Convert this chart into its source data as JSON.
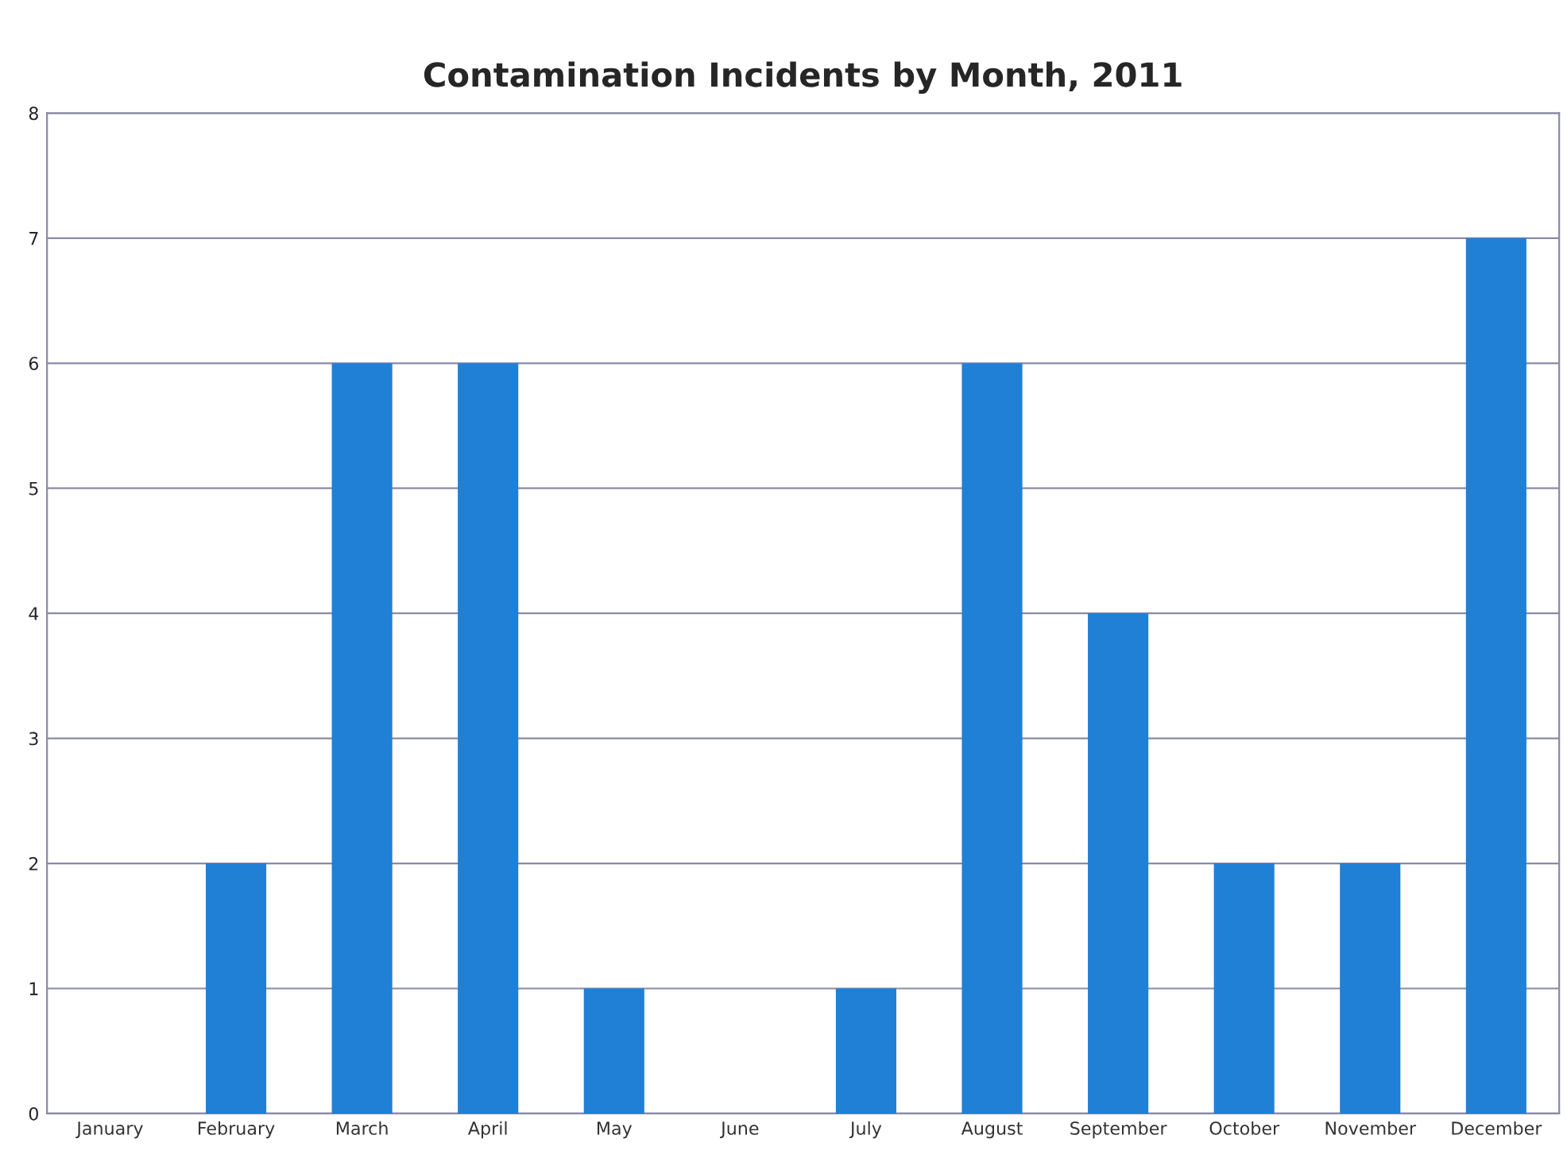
{
  "chart_data": {
    "type": "bar",
    "title": "Contamination Incidents by Month, 2011",
    "categories": [
      "January",
      "February",
      "March",
      "April",
      "May",
      "June",
      "July",
      "August",
      "September",
      "October",
      "November",
      "December"
    ],
    "values": [
      0,
      2,
      6,
      6,
      1,
      0,
      1,
      6,
      4,
      2,
      2,
      7
    ],
    "color": "#1f80d6",
    "ylim": [
      0,
      8
    ],
    "yticks": [
      0,
      1,
      2,
      3,
      4,
      5,
      6,
      7,
      8
    ],
    "grid": "y",
    "legend": false
  }
}
